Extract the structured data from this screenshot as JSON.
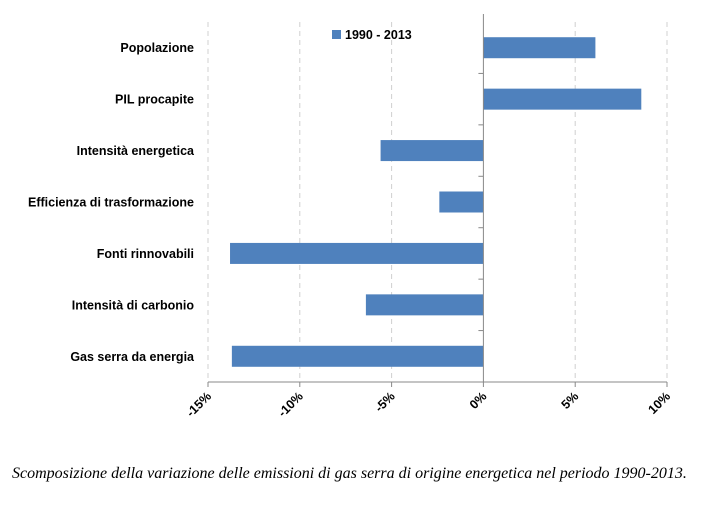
{
  "chart_data": {
    "type": "bar",
    "orientation": "horizontal",
    "categories": [
      "Popolazione",
      "PIL procapite",
      "Intensità energetica",
      "Efficienza di trasformazione",
      "Fonti rinnovabili",
      "Intensità di carbonio",
      "Gas serra da energia"
    ],
    "series": [
      {
        "name": "1990 - 2013",
        "values": [
          6.1,
          8.6,
          -5.6,
          -2.4,
          -13.8,
          -6.4,
          -13.7
        ],
        "color": "#4f81bd"
      }
    ],
    "xlim": [
      -15,
      10
    ],
    "xticks": [
      -15,
      -10,
      -5,
      0,
      5,
      10
    ],
    "xtick_labels": [
      "-15%",
      "-10%",
      "-5%",
      "0%",
      "5%",
      "10%"
    ],
    "grid": "vertical dashed",
    "legend": "top-center",
    "title": "",
    "xlabel": "",
    "ylabel": ""
  },
  "caption": "Scomposizione della variazione delle emissioni di gas serra di origine energetica nel periodo 1990-2013."
}
